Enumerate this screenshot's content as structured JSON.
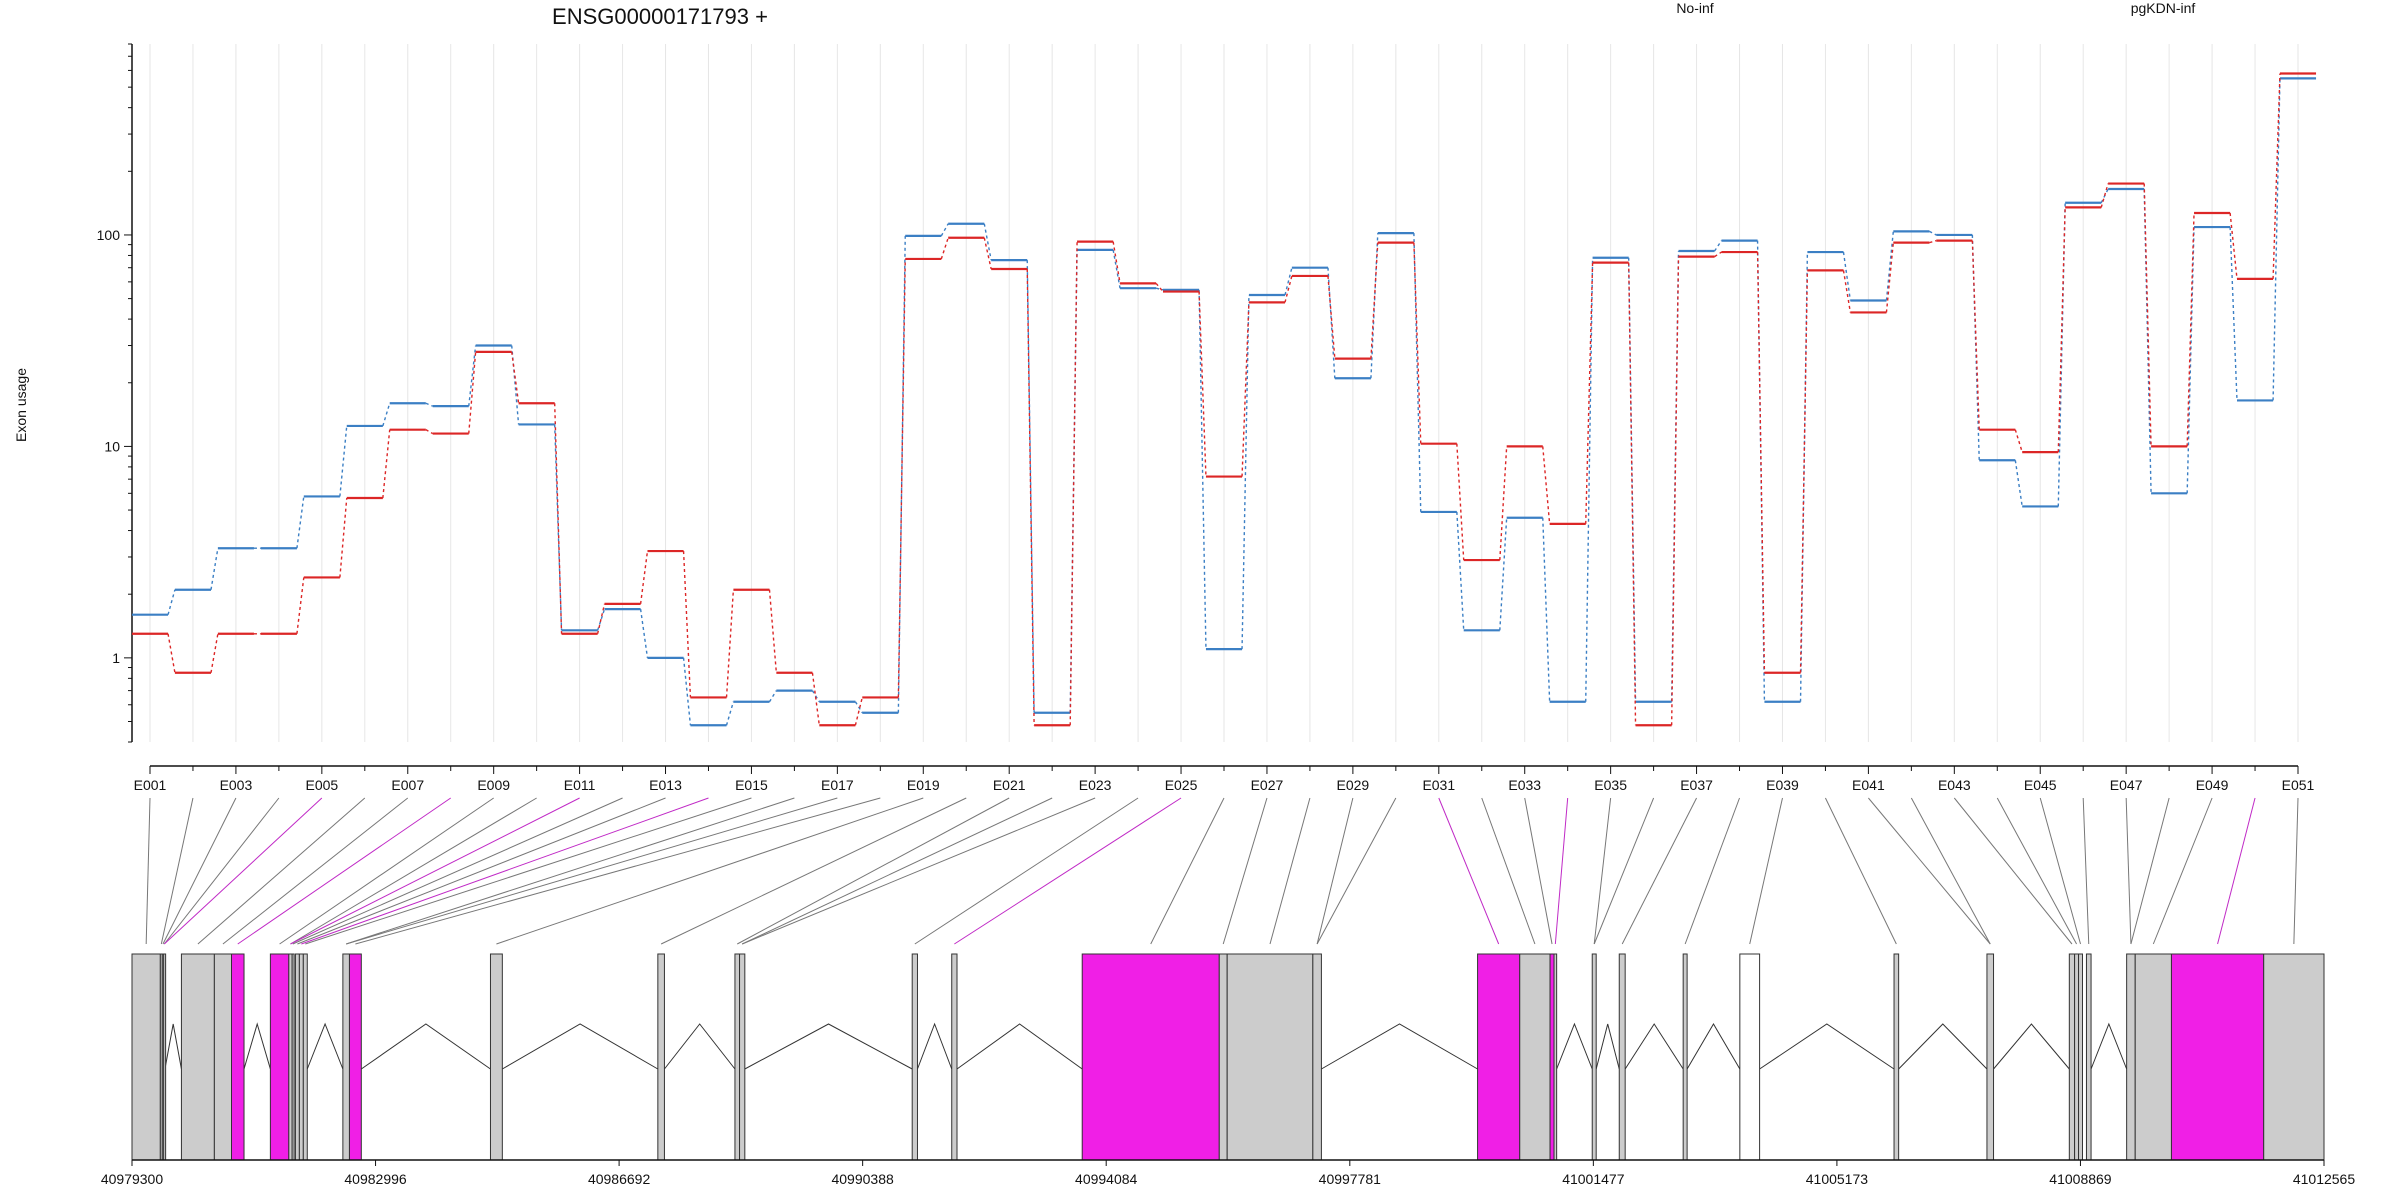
{
  "title": "ENSG00000171793 +",
  "legend": [
    {
      "name": "No-inf",
      "color": "#dc2626"
    },
    {
      "name": "pgKDN-inf",
      "color": "#3b7fc4"
    }
  ],
  "chart_data": {
    "type": "line",
    "scale": "log",
    "ylabel": "Exon usage",
    "ylim": [
      0.4,
      800
    ],
    "yticks": [
      1,
      10,
      100
    ],
    "ytick_labels": [
      "1",
      "10",
      "100"
    ],
    "exons": [
      "E001",
      "E002",
      "E003",
      "E004",
      "E005",
      "E006",
      "E007",
      "E008",
      "E009",
      "E010",
      "E011",
      "E012",
      "E013",
      "E014",
      "E015",
      "E016",
      "E017",
      "E018",
      "E019",
      "E020",
      "E021",
      "E022",
      "E023",
      "E024",
      "E025",
      "E026",
      "E027",
      "E028",
      "E029",
      "E030",
      "E031",
      "E032",
      "E033",
      "E034",
      "E035",
      "E036",
      "E037",
      "E038",
      "E039",
      "E040",
      "E041",
      "E042",
      "E043",
      "E044",
      "E045",
      "E046",
      "E047",
      "E048",
      "E049",
      "E050",
      "E051"
    ],
    "exon_labels": [
      "E001",
      "E003",
      "E005",
      "E007",
      "E009",
      "E011",
      "E013",
      "E015",
      "E017",
      "E019",
      "E021",
      "E023",
      "E025",
      "E027",
      "E029",
      "E031",
      "E033",
      "E035",
      "E037",
      "E039",
      "E041",
      "E043",
      "E045",
      "E047",
      "E049",
      "E051"
    ],
    "series": [
      {
        "name": "pgKDN-inf",
        "color": "#3b7fc4",
        "values": [
          1.6,
          2.1,
          3.3,
          3.3,
          5.8,
          12.5,
          16,
          15.5,
          30,
          12.7,
          1.35,
          1.7,
          1.0,
          0.48,
          0.62,
          0.7,
          0.62,
          0.55,
          99,
          113,
          76,
          0.55,
          85,
          56,
          55,
          1.1,
          52,
          70,
          21,
          102,
          4.9,
          1.35,
          4.6,
          0.62,
          78,
          0.62,
          84,
          94,
          0.62,
          83,
          49,
          104,
          100,
          8.6,
          5.2,
          142,
          165,
          6,
          109,
          16.5,
          550
        ]
      },
      {
        "name": "No-inf",
        "color": "#dc2626",
        "values": [
          1.3,
          0.85,
          1.3,
          1.3,
          2.4,
          5.7,
          12,
          11.5,
          28,
          16,
          1.3,
          1.8,
          3.2,
          0.65,
          2.1,
          0.85,
          0.48,
          0.65,
          77,
          97,
          69,
          0.48,
          93,
          59,
          54,
          7.2,
          48,
          64,
          26,
          92,
          10.3,
          2.9,
          10,
          4.3,
          74,
          0.48,
          79,
          83,
          0.85,
          68,
          43,
          92,
          94,
          12,
          9.4,
          135,
          175,
          10,
          127,
          62,
          580
        ]
      }
    ],
    "xlabel": "",
    "genomic_ticks": [
      "40979300",
      "40982996",
      "40986692",
      "40990388",
      "40994084",
      "40997781",
      "41001477",
      "41005173",
      "41008869",
      "41012565"
    ],
    "genomic_range": [
      40979300,
      41012565
    ],
    "exon_segments": [
      {
        "start": 40979300,
        "end": 40979730,
        "color": "gray"
      },
      {
        "start": 40979730,
        "end": 40979760,
        "color": "gray"
      },
      {
        "start": 40979760,
        "end": 40979780,
        "color": "gray"
      },
      {
        "start": 40979780,
        "end": 40979800,
        "color": "gray"
      },
      {
        "start": 40980050,
        "end": 40980550,
        "color": "gray"
      },
      {
        "start": 40980550,
        "end": 40980810,
        "color": "gray"
      },
      {
        "start": 40980810,
        "end": 40981000,
        "color": "magenta"
      },
      {
        "start": 40981400,
        "end": 40981680,
        "color": "magenta"
      },
      {
        "start": 40981680,
        "end": 40981730,
        "color": "gray"
      },
      {
        "start": 40981730,
        "end": 40981750,
        "color": "gray"
      },
      {
        "start": 40981780,
        "end": 40981840,
        "color": "gray"
      },
      {
        "start": 40981840,
        "end": 40981900,
        "color": "gray"
      },
      {
        "start": 40981900,
        "end": 40981960,
        "color": "gray"
      },
      {
        "start": 40982500,
        "end": 40982600,
        "color": "gray"
      },
      {
        "start": 40982600,
        "end": 40982780,
        "color": "magenta"
      },
      {
        "start": 40984740,
        "end": 40984920,
        "color": "gray"
      },
      {
        "start": 40987280,
        "end": 40987380,
        "color": "gray"
      },
      {
        "start": 40988450,
        "end": 40988520,
        "color": "gray"
      },
      {
        "start": 40988520,
        "end": 40988600,
        "color": "gray"
      },
      {
        "start": 40991140,
        "end": 40991220,
        "color": "gray"
      },
      {
        "start": 40991740,
        "end": 40991820,
        "color": "gray"
      },
      {
        "start": 40993720,
        "end": 40995800,
        "color": "magenta"
      },
      {
        "start": 40995800,
        "end": 40995920,
        "color": "gray"
      },
      {
        "start": 40995920,
        "end": 40997220,
        "color": "gray"
      },
      {
        "start": 40997220,
        "end": 40997350,
        "color": "gray"
      },
      {
        "start": 40999720,
        "end": 41000360,
        "color": "magenta"
      },
      {
        "start": 41000360,
        "end": 41000820,
        "color": "gray"
      },
      {
        "start": 41000820,
        "end": 41000880,
        "color": "magenta"
      },
      {
        "start": 41000880,
        "end": 41000920,
        "color": "gray"
      },
      {
        "start": 41001460,
        "end": 41001520,
        "color": "gray"
      },
      {
        "start": 41001870,
        "end": 41001960,
        "color": "gray"
      },
      {
        "start": 41002840,
        "end": 41002900,
        "color": "gray"
      },
      {
        "start": 41003700,
        "end": 41004000,
        "color": "white"
      },
      {
        "start": 41006040,
        "end": 41006110,
        "color": "gray"
      },
      {
        "start": 41007450,
        "end": 41007550,
        "color": "gray"
      },
      {
        "start": 41008700,
        "end": 41008780,
        "color": "gray"
      },
      {
        "start": 41008780,
        "end": 41008840,
        "color": "gray"
      },
      {
        "start": 41008840,
        "end": 41008900,
        "color": "gray"
      },
      {
        "start": 41008960,
        "end": 41009030,
        "color": "gray"
      },
      {
        "start": 41009570,
        "end": 41009700,
        "color": "gray"
      },
      {
        "start": 41009700,
        "end": 41010250,
        "color": "gray"
      },
      {
        "start": 41010250,
        "end": 41011650,
        "color": "magenta"
      },
      {
        "start": 41011650,
        "end": 41012565,
        "color": "gray"
      }
    ],
    "highlighted_exons": [
      "E005",
      "E008",
      "E011",
      "E014",
      "E025",
      "E031",
      "E034",
      "E050"
    ]
  }
}
